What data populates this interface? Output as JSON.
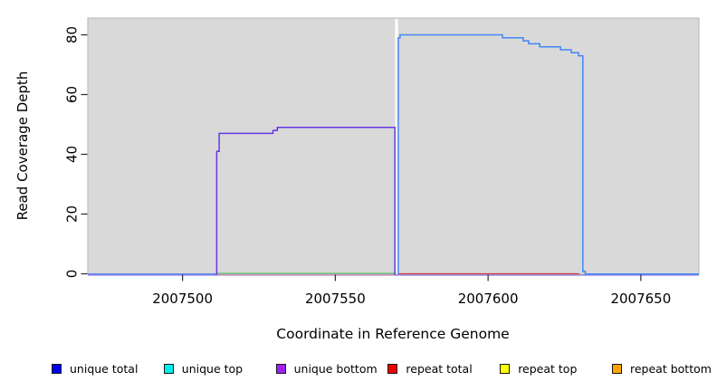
{
  "chart_data": {
    "type": "line",
    "title": "",
    "xlabel": "Coordinate in Reference Genome",
    "ylabel": "Read Coverage Depth",
    "xlim": [
      2007469,
      2007669
    ],
    "ylim": [
      0,
      85.6
    ],
    "grid": false,
    "plot_bg": "#d9d9d9",
    "plot_border": "#b5b5b5",
    "x_ticks": [
      {
        "value": 2007500,
        "label": "2007500"
      },
      {
        "value": 2007550,
        "label": "2007550"
      },
      {
        "value": 2007600,
        "label": "2007600"
      },
      {
        "value": 2007650,
        "label": "2007650"
      }
    ],
    "y_ticks": [
      {
        "value": 0,
        "label": "0"
      },
      {
        "value": 20,
        "label": "20"
      },
      {
        "value": 40,
        "label": "40"
      },
      {
        "value": 60,
        "label": "60"
      },
      {
        "value": 80,
        "label": "80"
      }
    ],
    "series": [
      {
        "kind": "polyline",
        "name": "unique-bottom-baseline",
        "color": "#8f7de8",
        "width": 1.3,
        "points": [
          [
            2007469,
            -0.45
          ],
          [
            2007669,
            -0.45
          ]
        ]
      },
      {
        "kind": "polyline",
        "name": "unique-total-baseline-left",
        "color": "#5b86ee",
        "width": 1.3,
        "points": [
          [
            2007469,
            -0.05
          ],
          [
            2007569.6,
            -0.05
          ]
        ]
      },
      {
        "kind": "polyline",
        "name": "repeat-total-baseline-under-green",
        "color": "#eb97a4",
        "width": 1.2,
        "points": [
          [
            2007511.2,
            -0.4
          ],
          [
            2007569.6,
            -0.4
          ]
        ]
      },
      {
        "kind": "band",
        "name": "coverage-gap-band",
        "color": "#ffffff",
        "x1": 2007569.6,
        "x2": 2007570.5
      },
      {
        "kind": "polyline",
        "name": "repeat-total",
        "legend": "repeat total",
        "color": "#d23b47",
        "width": 1.3,
        "points": [
          [
            2007570.6,
            0
          ],
          [
            2007629.8,
            0
          ]
        ]
      },
      {
        "kind": "polyline",
        "name": "green-baseline-segment",
        "color": "#7dc87d",
        "width": 1.4,
        "points": [
          [
            2007511.2,
            0.15
          ],
          [
            2007569.6,
            0.15
          ]
        ]
      },
      {
        "kind": "polyline",
        "name": "unique-bottom",
        "legend": "unique bottom",
        "color": "#6737e3",
        "width": 1.5,
        "points": [
          [
            2007511.2,
            -0.4
          ],
          [
            2007511.2,
            41
          ],
          [
            2007512,
            41
          ],
          [
            2007512,
            47
          ],
          [
            2007529.6,
            47
          ],
          [
            2007529.6,
            48
          ],
          [
            2007531,
            48
          ],
          [
            2007531,
            49
          ],
          [
            2007569.5,
            49
          ],
          [
            2007569.5,
            -0.4
          ]
        ]
      },
      {
        "kind": "polyline",
        "name": "unique-total",
        "legend": "unique total",
        "color": "#4486f2",
        "width": 1.5,
        "points": [
          [
            2007570.6,
            -0.05
          ],
          [
            2007570.6,
            79
          ],
          [
            2007571.2,
            79
          ],
          [
            2007571.2,
            80
          ],
          [
            2007604.7,
            80
          ],
          [
            2007604.7,
            79
          ],
          [
            2007611.5,
            79
          ],
          [
            2007611.5,
            78
          ],
          [
            2007613.3,
            78
          ],
          [
            2007613.3,
            77
          ],
          [
            2007616.9,
            77
          ],
          [
            2007616.9,
            76
          ],
          [
            2007623.7,
            76
          ],
          [
            2007623.7,
            75
          ],
          [
            2007627.2,
            75
          ],
          [
            2007627.2,
            74
          ],
          [
            2007629.6,
            74
          ],
          [
            2007629.6,
            73
          ],
          [
            2007631,
            73
          ],
          [
            2007631,
            0.8
          ],
          [
            2007631.8,
            0.8
          ],
          [
            2007631.8,
            -0.05
          ],
          [
            2007669,
            -0.05
          ]
        ]
      }
    ],
    "legend": [
      {
        "label": "unique total",
        "color": "#0000ee"
      },
      {
        "label": "unique top",
        "color": "#00eeee"
      },
      {
        "label": "unique bottom",
        "color": "#a020f0"
      },
      {
        "label": "repeat total",
        "color": "#ee0000"
      },
      {
        "label": "repeat top",
        "color": "#ffff00"
      },
      {
        "label": "repeat bottom",
        "color": "#ffa500"
      }
    ],
    "legend_position": "bottom"
  }
}
